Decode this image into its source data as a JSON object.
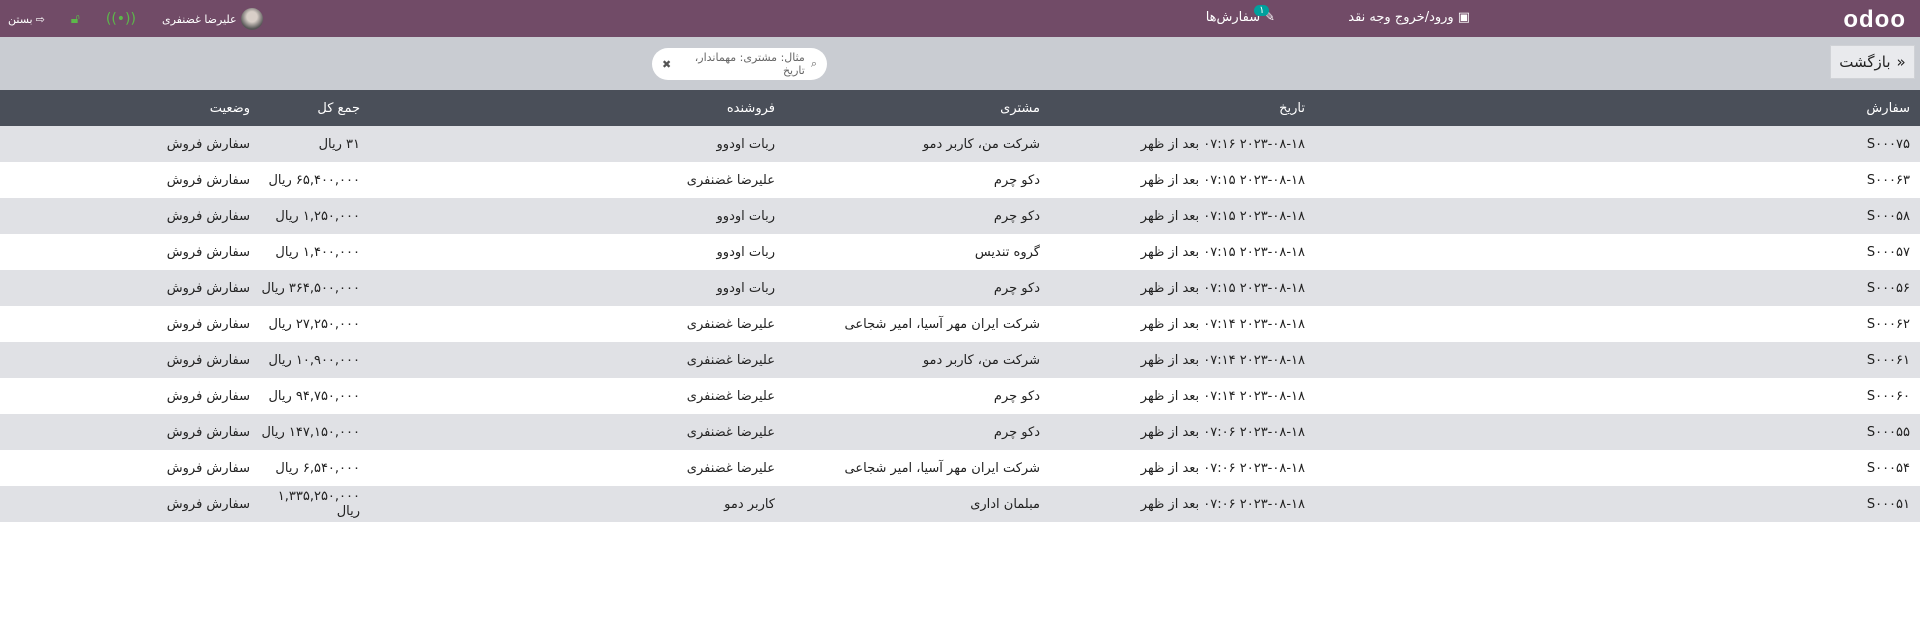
{
  "topbar": {
    "logo": "odoo",
    "cash_label": "ورود/خروج وجه نقد",
    "orders_label": "سفارش‌ها",
    "orders_badge": "۱",
    "user_name": "علیرضا غضنفری",
    "close_label": "بستن",
    "icons": {
      "cash": "money-icon",
      "orders": "pencil-icon",
      "wifi": "wifi-icon",
      "lock": "unlock-icon",
      "close": "sign-out-icon"
    }
  },
  "subbar": {
    "back_label": "بازگشت",
    "search_placeholder": "مثال: مشتری: مهماندار، تاریخ"
  },
  "table": {
    "headers": [
      "سفارش",
      "تاریخ",
      "مشتری",
      "فروشنده",
      "جمع کل",
      "وضعیت"
    ],
    "rows": [
      [
        "S۰۰۰۷۵",
        "۲۰۲۳-۰۸-۱۸ ۰۷:۱۶ بعد از ظهر",
        "شرکت من، کاربر دمو",
        "ربات اودوو",
        "۳۱ ریال",
        "سفارش فروش"
      ],
      [
        "S۰۰۰۶۳",
        "۲۰۲۳-۰۸-۱۸ ۰۷:۱۵ بعد از ظهر",
        "دکو چرم",
        "علیرضا غضنفری",
        "۶۵,۴۰۰,۰۰۰ ریال",
        "سفارش فروش"
      ],
      [
        "S۰۰۰۵۸",
        "۲۰۲۳-۰۸-۱۸ ۰۷:۱۵ بعد از ظهر",
        "دکو چرم",
        "ربات اودوو",
        "۱,۲۵۰,۰۰۰ ریال",
        "سفارش فروش"
      ],
      [
        "S۰۰۰۵۷",
        "۲۰۲۳-۰۸-۱۸ ۰۷:۱۵ بعد از ظهر",
        "گروه تندیس",
        "ربات اودوو",
        "۱,۴۰۰,۰۰۰ ریال",
        "سفارش فروش"
      ],
      [
        "S۰۰۰۵۶",
        "۲۰۲۳-۰۸-۱۸ ۰۷:۱۵ بعد از ظهر",
        "دکو چرم",
        "ربات اودوو",
        "۳۶۴,۵۰۰,۰۰۰ ریال",
        "سفارش فروش"
      ],
      [
        "S۰۰۰۶۲",
        "۲۰۲۳-۰۸-۱۸ ۰۷:۱۴ بعد از ظهر",
        "شرکت ایران مهر آسیا، امیر شجاعی",
        "علیرضا غضنفری",
        "۲۷,۲۵۰,۰۰۰ ریال",
        "سفارش فروش"
      ],
      [
        "S۰۰۰۶۱",
        "۲۰۲۳-۰۸-۱۸ ۰۷:۱۴ بعد از ظهر",
        "شرکت من، کاربر دمو",
        "علیرضا غضنفری",
        "۱۰,۹۰۰,۰۰۰ ریال",
        "سفارش فروش"
      ],
      [
        "S۰۰۰۶۰",
        "۲۰۲۳-۰۸-۱۸ ۰۷:۱۴ بعد از ظهر",
        "دکو چرم",
        "علیرضا غضنفری",
        "۹۴,۷۵۰,۰۰۰ ریال",
        "سفارش فروش"
      ],
      [
        "S۰۰۰۵۵",
        "۲۰۲۳-۰۸-۱۸ ۰۷:۰۶ بعد از ظهر",
        "دکو چرم",
        "علیرضا غضنفری",
        "۱۴۷,۱۵۰,۰۰۰ ریال",
        "سفارش فروش"
      ],
      [
        "S۰۰۰۵۴",
        "۲۰۲۳-۰۸-۱۸ ۰۷:۰۶ بعد از ظهر",
        "شرکت ایران مهر آسیا، امیر شجاعی",
        "علیرضا غضنفری",
        "۶,۵۴۰,۰۰۰ ریال",
        "سفارش فروش"
      ],
      [
        "S۰۰۰۵۱",
        "۲۰۲۳-۰۸-۱۸ ۰۷:۰۶ بعد از ظهر",
        "مبلمان اداری",
        "کاربر دمو",
        "۱,۳۳۵,۲۵۰,۰۰۰ ریال",
        "سفارش فروش"
      ]
    ]
  }
}
